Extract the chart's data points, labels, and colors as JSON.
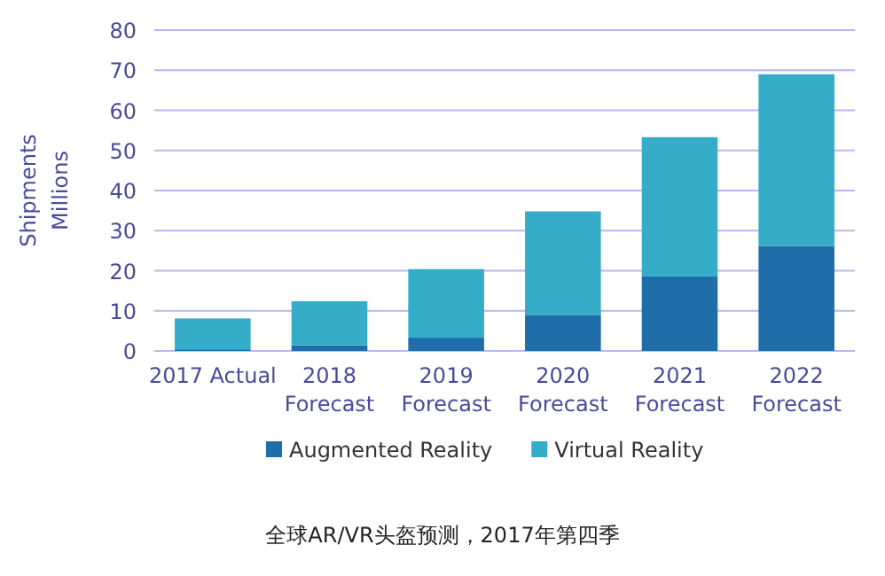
{
  "chart_data": {
    "type": "bar",
    "stacked": true,
    "categories": [
      "2017 Actual",
      "2018\nForecast",
      "2019\nForecast",
      "2020\nForecast",
      "2021\nForecast",
      "2022\nForecast"
    ],
    "series": [
      {
        "name": "Augmented Reality",
        "color": "#1f6eaa",
        "values": [
          0.4,
          1.4,
          3.3,
          9.0,
          18.6,
          26.2
        ]
      },
      {
        "name": "Virtual Reality",
        "color": "#36adc8",
        "values": [
          7.7,
          11.0,
          17.1,
          25.8,
          34.7,
          42.8
        ]
      }
    ],
    "ylabel": "Shipments\nMillions",
    "ylim": [
      0,
      80
    ],
    "yticks": [
      0,
      10,
      20,
      30,
      40,
      50,
      60,
      70,
      80
    ],
    "grid": "y",
    "legend": "bottom",
    "annotations": [
      "全球AR/VR头盔预测，2017年第四季"
    ]
  }
}
